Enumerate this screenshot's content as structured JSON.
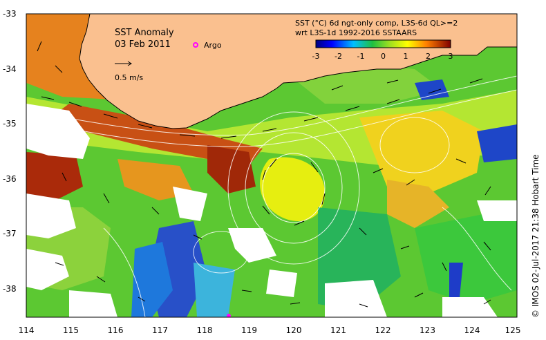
{
  "title": "SST Anomaly",
  "date": "03 Feb 2011",
  "argo_label": "Argo",
  "scale_label": "0.5 m/s",
  "legend": {
    "line1": "SST (°C) 6d ngt-only comp, L3S-6d QL>=2",
    "line2": "wrt L3S-1d 1992-2016 SSTAARS",
    "ticks": [
      "-3",
      "-2",
      "-1",
      "0",
      "1",
      "2",
      "3"
    ]
  },
  "credit": "© IMOS 02-Jul-2017 21:38 Hobart Time",
  "x_axis": {
    "ticks": [
      "114",
      "115",
      "116",
      "117",
      "118",
      "119",
      "120",
      "121",
      "122",
      "123",
      "124",
      "125"
    ]
  },
  "y_axis": {
    "ticks": [
      "-33",
      "-34",
      "-35",
      "-36",
      "-37",
      "-38"
    ]
  },
  "colors": {
    "land": "#fac08f",
    "no_data": "#ffffff",
    "argo": "#ff00ff"
  }
}
